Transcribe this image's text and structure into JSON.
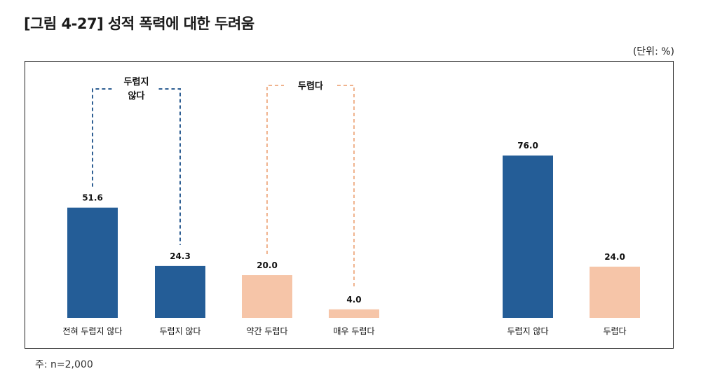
{
  "title": "[그림 4-27] 성적 폭력에 대한 두려움",
  "unit": "(단위: %)",
  "note": "주: n=2,000",
  "colors": {
    "blue": "#245d97",
    "peach": "#f6c5a8",
    "blue_dash": "#2f5f93",
    "peach_dash": "#f0b38e"
  },
  "chart_data": {
    "type": "bar",
    "ylabel": "%",
    "ylim": [
      0,
      100
    ],
    "groups": [
      {
        "name": "detail",
        "categories": [
          "전혀 두렵지 않다",
          "두렵지 않다",
          "약간 두렵다",
          "매우 두렵다"
        ],
        "values": [
          51.6,
          24.3,
          20.0,
          4.0
        ],
        "value_labels": [
          "51.6",
          "24.3",
          "20.0",
          "4.0"
        ],
        "colors": [
          "#245d97",
          "#245d97",
          "#f6c5a8",
          "#f6c5a8"
        ]
      },
      {
        "name": "summary",
        "categories": [
          "두렵지 않다",
          "두렵다"
        ],
        "values": [
          76.0,
          24.0
        ],
        "value_labels": [
          "76.0",
          "24.0"
        ],
        "colors": [
          "#245d97",
          "#f6c5a8"
        ]
      }
    ],
    "brackets": [
      {
        "label_lines": [
          "두렵지",
          "않다"
        ],
        "spans": [
          "전혀 두렵지 않다",
          "두렵지 않다"
        ],
        "style": "dashed",
        "color": "#2f5f93"
      },
      {
        "label_lines": [
          "두렵다"
        ],
        "spans": [
          "약간 두렵다",
          "매우 두렵다"
        ],
        "style": "dashed",
        "color": "#f0b38e"
      }
    ]
  }
}
